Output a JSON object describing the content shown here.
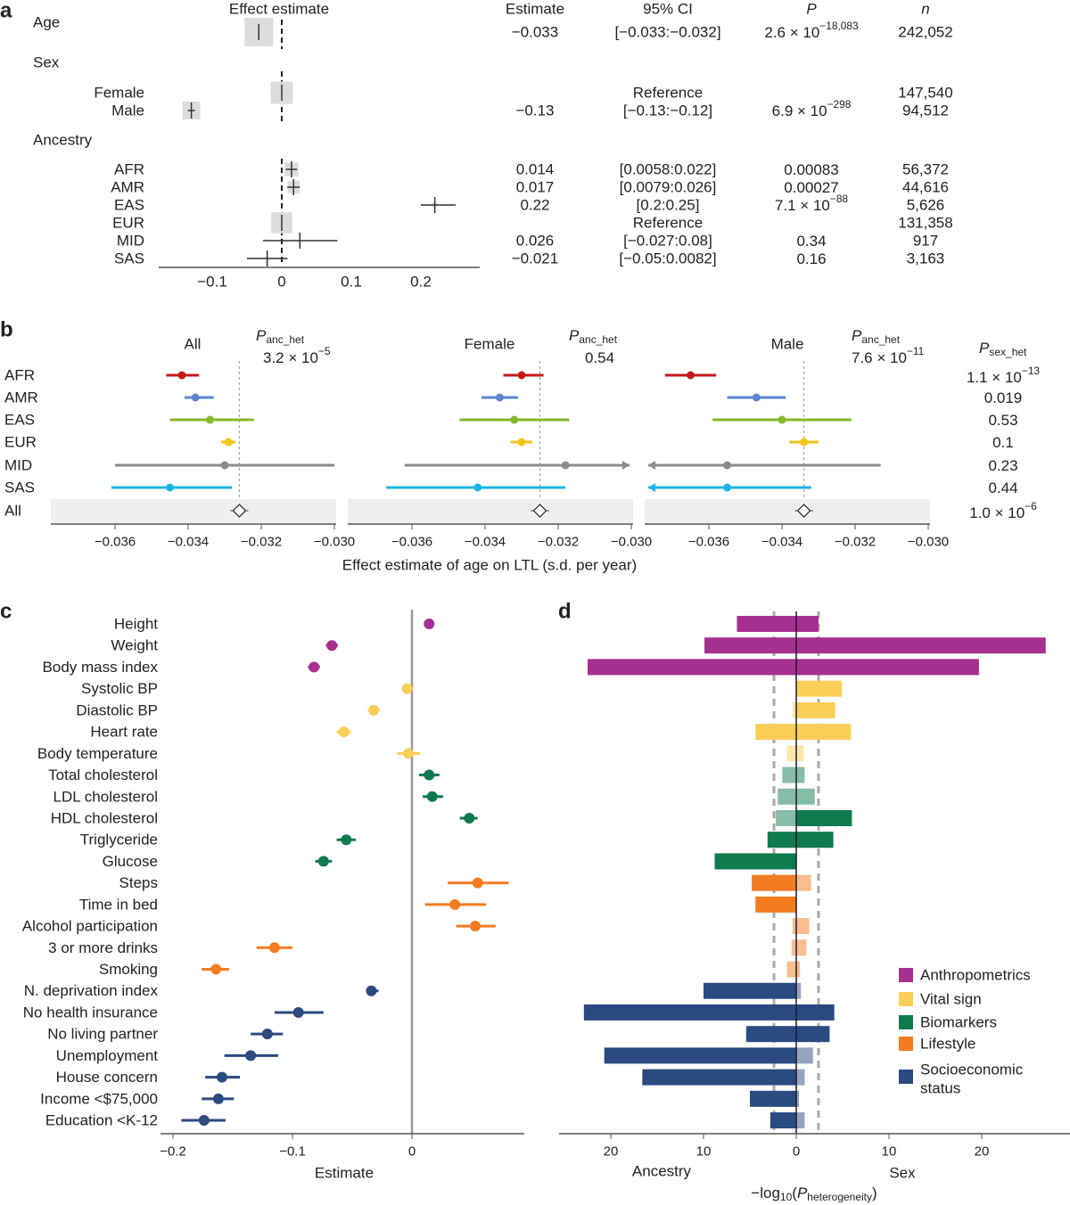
{
  "panel_labels": [
    "a",
    "b",
    "c",
    "d"
  ],
  "category_colors": [
    "#a5308f",
    "#f9cf58",
    "#0f7a4e",
    "#f47c20",
    "#2a4a80"
  ],
  "chart_data": [
    {
      "type": "forest-table",
      "panel": "a",
      "columns": {
        "plot": "Effect estimate",
        "estimate": "Estimate",
        "ci": "95% CI",
        "p": "P",
        "n": "n"
      },
      "xlim": [
        -0.177,
        0.285
      ],
      "x_ticks": [
        {
          "value": -0.1,
          "label": "−0.1"
        },
        {
          "value": 0,
          "label": "0"
        },
        {
          "value": 0.1,
          "label": "0.1"
        },
        {
          "value": 0.2,
          "label": "0.2"
        }
      ],
      "rows": [
        {
          "label": "Age",
          "kind": "top",
          "estimate": -0.033,
          "lo": -0.033,
          "hi": -0.032,
          "estimate_text": "−0.033",
          "ci_text": "[−0.033:−0.032]",
          "p_base": "2.6 × 10",
          "p_exp": "−18,083",
          "n": 242052,
          "n_text": "242,052"
        },
        {
          "label": "Sex",
          "kind": "group"
        },
        {
          "label": "Female",
          "kind": "item",
          "estimate": 0,
          "lo": 0,
          "hi": 0,
          "reference": true,
          "ci_text": "Reference",
          "n": 147540,
          "n_text": "147,540"
        },
        {
          "label": "Male",
          "kind": "item",
          "estimate": -0.13,
          "lo": -0.135,
          "hi": -0.125,
          "estimate_text": "−0.13",
          "ci_text": "[−0.13:−0.12]",
          "p_base": "6.9 × 10",
          "p_exp": "−298",
          "n": 94512,
          "n_text": "94,512"
        },
        {
          "label": "Ancestry",
          "kind": "group"
        },
        {
          "label": "AFR",
          "kind": "item",
          "estimate": 0.014,
          "lo": 0.0058,
          "hi": 0.022,
          "estimate_text": "0.014",
          "ci_text": "[0.0058:0.022]",
          "p_base": "0.00083",
          "n": 56372,
          "n_text": "56,372"
        },
        {
          "label": "AMR",
          "kind": "item",
          "estimate": 0.017,
          "lo": 0.0079,
          "hi": 0.026,
          "estimate_text": "0.017",
          "ci_text": "[0.0079:0.026]",
          "p_base": "0.00027",
          "n": 44616,
          "n_text": "44,616"
        },
        {
          "label": "EAS",
          "kind": "item",
          "estimate": 0.22,
          "lo": 0.2,
          "hi": 0.25,
          "estimate_text": "0.22",
          "ci_text": "[0.2:0.25]",
          "p_base": "7.1 × 10",
          "p_exp": "−88",
          "n": 5626,
          "n_text": "5,626"
        },
        {
          "label": "EUR",
          "kind": "item",
          "estimate": 0,
          "lo": 0,
          "hi": 0,
          "reference": true,
          "ci_text": "Reference",
          "n": 131358,
          "n_text": "131,358"
        },
        {
          "label": "MID",
          "kind": "item",
          "estimate": 0.026,
          "lo": -0.027,
          "hi": 0.08,
          "estimate_text": "0.026",
          "ci_text": "[−0.027:0.08]",
          "p_base": "0.34",
          "n": 917,
          "n_text": "917"
        },
        {
          "label": "SAS",
          "kind": "item",
          "estimate": -0.021,
          "lo": -0.05,
          "hi": 0.0082,
          "estimate_text": "−0.021",
          "ci_text": "[−0.05:0.0082]",
          "p_base": "0.16",
          "n": 3163,
          "n_text": "3,163"
        }
      ]
    },
    {
      "type": "forest",
      "panel": "b",
      "row_labels": [
        "AFR",
        "AMR",
        "EAS",
        "EUR",
        "MID",
        "SAS",
        "All"
      ],
      "ancestry_colors": [
        "#c41a1a",
        "#5b86d0",
        "#86b82a",
        "#f5c518",
        "#888c90",
        "#1eb4e0"
      ],
      "xlim": [
        -0.0378,
        -0.0299
      ],
      "x_ticks": [
        {
          "value": -0.036,
          "label": "−0.036"
        },
        {
          "value": -0.034,
          "label": "−0.034"
        },
        {
          "value": -0.032,
          "label": "−0.032"
        },
        {
          "value": -0.03,
          "label": "−0.030"
        }
      ],
      "xlabel": "Effect estimate of age on LTL (s.d. per year)",
      "subpanels": [
        {
          "title": "All",
          "p_label": "P",
          "p_sub": "anc_het",
          "p_base": "3.2 × 10",
          "p_exp": "−5",
          "overall": -0.0326,
          "points": [
            {
              "estimate": -0.03417,
              "lo": -0.0346,
              "hi": -0.0337
            },
            {
              "estimate": -0.0338,
              "lo": -0.0341,
              "hi": -0.0333
            },
            {
              "estimate": -0.0334,
              "lo": -0.0345,
              "hi": -0.0322
            },
            {
              "estimate": -0.0329,
              "lo": -0.0331,
              "hi": -0.0327
            },
            {
              "estimate": -0.033,
              "lo": -0.036,
              "hi": -0.03
            },
            {
              "estimate": -0.0345,
              "lo": -0.0361,
              "hi": -0.0328
            }
          ]
        },
        {
          "title": "Female",
          "p_label": "P",
          "p_sub": "anc_het",
          "p_base": "0.54",
          "overall": -0.0325,
          "points": [
            {
              "estimate": -0.033,
              "lo": -0.0335,
              "hi": -0.0324
            },
            {
              "estimate": -0.0336,
              "lo": -0.0341,
              "hi": -0.0331
            },
            {
              "estimate": -0.0332,
              "lo": -0.0347,
              "hi": -0.0317
            },
            {
              "estimate": -0.033,
              "lo": -0.0333,
              "hi": -0.0327
            },
            {
              "estimate": -0.0318,
              "lo": -0.0362,
              "hi": null,
              "hi_beyond_axis": true
            },
            {
              "estimate": -0.0342,
              "lo": -0.0367,
              "hi": -0.0318
            }
          ]
        },
        {
          "title": "Male",
          "p_label": "P",
          "p_sub": "anc_het",
          "p_base": "7.6 × 10",
          "p_exp": "−11",
          "overall": -0.0334,
          "points": [
            {
              "estimate": -0.0365,
              "lo": -0.0372,
              "hi": -0.0358
            },
            {
              "estimate": -0.0347,
              "lo": -0.0355,
              "hi": -0.0339
            },
            {
              "estimate": -0.034,
              "lo": -0.0359,
              "hi": -0.0321
            },
            {
              "estimate": -0.0334,
              "lo": -0.0338,
              "hi": -0.033
            },
            {
              "estimate": -0.0355,
              "lo": null,
              "lo_beyond_axis": true,
              "hi": -0.0313
            },
            {
              "estimate": -0.0355,
              "lo": null,
              "lo_beyond_axis": true,
              "hi": -0.0332
            }
          ]
        }
      ],
      "p_sex_het": {
        "label": "P",
        "sub": "sex_het",
        "values": [
          {
            "base": "1.1 × 10",
            "exp": "−13"
          },
          {
            "base": "0.019"
          },
          {
            "base": "0.53"
          },
          {
            "base": "0.1"
          },
          {
            "base": "0.23"
          },
          {
            "base": "0.44"
          },
          {
            "base": "1.0 × 10",
            "exp": "−6"
          }
        ]
      }
    },
    {
      "type": "forest",
      "panel": "c",
      "xlabel": "Estimate",
      "xlim": [
        -0.21,
        0.095
      ],
      "x_ticks": [
        {
          "value": -0.2,
          "label": "−0.2"
        },
        {
          "value": -0.1,
          "label": "−0.1"
        },
        {
          "value": 0,
          "label": "0"
        }
      ],
      "traits": [
        {
          "label": "Height",
          "category": 0,
          "estimate": 0.0144,
          "lo": 0.012,
          "hi": 0.017
        },
        {
          "label": "Weight",
          "category": 0,
          "estimate": -0.067,
          "lo": -0.072,
          "hi": -0.062
        },
        {
          "label": "Body mass index",
          "category": 0,
          "estimate": -0.082,
          "lo": -0.087,
          "hi": -0.077
        },
        {
          "label": "Systolic BP",
          "category": 1,
          "estimate": -0.004,
          "lo": -0.008,
          "hi": 0.0
        },
        {
          "label": "Diastolic BP",
          "category": 1,
          "estimate": -0.032,
          "lo": -0.037,
          "hi": -0.027
        },
        {
          "label": "Heart rate",
          "category": 1,
          "estimate": -0.057,
          "lo": -0.063,
          "hi": -0.051
        },
        {
          "label": "Body temperature",
          "category": 1,
          "estimate": -0.003,
          "lo": -0.0124,
          "hi": 0.007
        },
        {
          "label": "Total cholesterol",
          "category": 2,
          "estimate": 0.0144,
          "lo": 0.006,
          "hi": 0.023
        },
        {
          "label": "LDL cholesterol",
          "category": 2,
          "estimate": 0.017,
          "lo": 0.009,
          "hi": 0.026
        },
        {
          "label": "HDL cholesterol",
          "category": 2,
          "estimate": 0.048,
          "lo": 0.04,
          "hi": 0.055
        },
        {
          "label": "Triglyceride",
          "category": 2,
          "estimate": -0.055,
          "lo": -0.063,
          "hi": -0.047
        },
        {
          "label": "Glucose",
          "category": 2,
          "estimate": -0.074,
          "lo": -0.081,
          "hi": -0.067
        },
        {
          "label": "Steps",
          "category": 3,
          "estimate": 0.055,
          "lo": 0.03,
          "hi": 0.081
        },
        {
          "label": "Time in bed",
          "category": 3,
          "estimate": 0.036,
          "lo": 0.011,
          "hi": 0.062
        },
        {
          "label": "Alcohol participation",
          "category": 3,
          "estimate": 0.053,
          "lo": 0.037,
          "hi": 0.07
        },
        {
          "label": "3 or more drinks",
          "category": 3,
          "estimate": -0.115,
          "lo": -0.13,
          "hi": -0.1
        },
        {
          "label": "Smoking",
          "category": 3,
          "estimate": -0.164,
          "lo": -0.176,
          "hi": -0.153
        },
        {
          "label": "N. deprivation index",
          "category": 4,
          "estimate": -0.034,
          "lo": -0.038,
          "hi": -0.028
        },
        {
          "label": "No health insurance",
          "category": 4,
          "estimate": -0.095,
          "lo": -0.115,
          "hi": -0.074
        },
        {
          "label": "No living partner",
          "category": 4,
          "estimate": -0.121,
          "lo": -0.135,
          "hi": -0.108
        },
        {
          "label": "Unemployment",
          "category": 4,
          "estimate": -0.135,
          "lo": -0.157,
          "hi": -0.112
        },
        {
          "label": "House concern",
          "category": 4,
          "estimate": -0.159,
          "lo": -0.173,
          "hi": -0.144
        },
        {
          "label": "Income <$75,000",
          "category": 4,
          "estimate": -0.162,
          "lo": -0.176,
          "hi": -0.149
        },
        {
          "label": "Education <K-12",
          "category": 4,
          "estimate": -0.174,
          "lo": -0.193,
          "hi": -0.156
        }
      ]
    },
    {
      "type": "bar",
      "panel": "d",
      "orientation": "horizontal-diverging",
      "rows_follow_panel": "c",
      "left_label": "Ancestry",
      "right_label": "Sex",
      "xlabel": {
        "pre": "−log",
        "sub1": "10",
        "mid": "(",
        "p": "P",
        "sub2": "heterogeneity",
        "end": ")"
      },
      "xlim": [
        25,
        29
      ],
      "x_ticks": [
        {
          "value": -20,
          "label": "20"
        },
        {
          "value": -10,
          "label": "10"
        },
        {
          "value": 0,
          "label": "0"
        },
        {
          "value": 10,
          "label": "10"
        },
        {
          "value": 20,
          "label": "20"
        }
      ],
      "significance_threshold": 2.4,
      "ancestry": [
        6.4,
        9.9,
        22.5,
        0.0,
        0.4,
        4.4,
        1.0,
        1.5,
        2.0,
        2.2,
        3.1,
        8.8,
        4.8,
        4.4,
        0.4,
        0.5,
        1.0,
        10.0,
        22.9,
        5.4,
        20.7,
        16.6,
        5.0,
        2.8
      ],
      "sex": [
        2.4,
        26.9,
        19.7,
        4.9,
        4.2,
        5.9,
        0.8,
        0.9,
        2.0,
        6.0,
        4.0,
        0.0,
        1.6,
        0.0,
        1.4,
        1.1,
        0.4,
        0.5,
        4.1,
        3.6,
        1.8,
        0.9,
        0.3,
        0.9
      ],
      "legend": [
        {
          "lines": [
            "Anthropometrics"
          ],
          "category": 0
        },
        {
          "lines": [
            "Vital sign"
          ],
          "category": 1
        },
        {
          "lines": [
            "Biomarkers"
          ],
          "category": 2
        },
        {
          "lines": [
            "Lifestyle"
          ],
          "category": 3
        },
        {
          "lines": [
            "Socioeconomic",
            "status"
          ],
          "category": 4
        }
      ]
    }
  ]
}
